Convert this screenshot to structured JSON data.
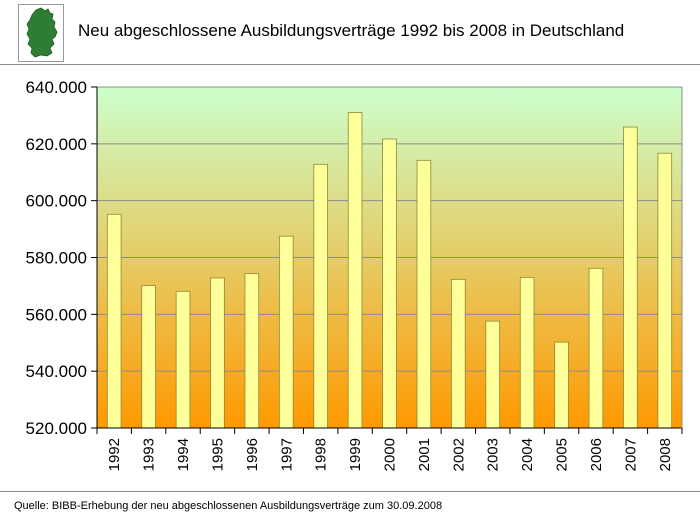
{
  "header": {
    "title": "Neu abgeschlossene Ausbildungsverträge 1992 bis 2008 in Deutschland",
    "logo_icon": "germany-map-icon"
  },
  "footer": {
    "source": "Quelle: BIBB-Erhebung der neu abgeschlossenen Ausbildungsverträge zum 30.09.2008"
  },
  "chart_data": {
    "type": "bar",
    "title": "Neu abgeschlossene Ausbildungsverträge 1992 bis 2008 in Deutschland",
    "xlabel": "",
    "ylabel": "",
    "categories": [
      "1992",
      "1993",
      "1994",
      "1995",
      "1996",
      "1997",
      "1998",
      "1999",
      "2000",
      "2001",
      "2002",
      "2003",
      "2004",
      "2005",
      "2006",
      "2007",
      "2008"
    ],
    "values": [
      595200,
      570100,
      568100,
      572800,
      574300,
      587500,
      612800,
      631000,
      621700,
      614200,
      572300,
      557600,
      573000,
      550200,
      576200,
      625900,
      616700
    ],
    "ylim": [
      520000,
      640000
    ],
    "yticks": [
      "520.000",
      "540.000",
      "560.000",
      "580.000",
      "600.000",
      "620.000",
      "640.000"
    ],
    "ytick_values": [
      520000,
      540000,
      560000,
      580000,
      600000,
      620000,
      640000
    ],
    "grid": true,
    "colors": {
      "bar_fill": "#ffff99",
      "bar_stroke": "#8a8a3a",
      "bg_top": "#ccffcc",
      "bg_bottom": "#ff9900",
      "logo_green": "#2e7d32"
    }
  }
}
